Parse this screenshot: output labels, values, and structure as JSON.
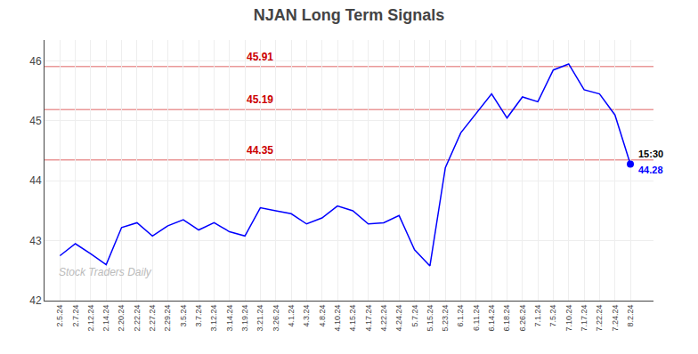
{
  "chart_data": {
    "type": "line",
    "title": "NJAN Long Term Signals",
    "categories": [
      "2.5.24",
      "2.7.24",
      "2.12.24",
      "2.14.24",
      "2.20.24",
      "2.22.24",
      "2.27.24",
      "2.29.24",
      "3.5.24",
      "3.7.24",
      "3.12.24",
      "3.14.24",
      "3.19.24",
      "3.21.24",
      "3.26.24",
      "4.1.24",
      "4.3.24",
      "4.8.24",
      "4.10.24",
      "4.15.24",
      "4.17.24",
      "4.22.24",
      "4.24.24",
      "5.7.24",
      "5.15.24",
      "5.23.24",
      "6.1.24",
      "6.11.24",
      "6.14.24",
      "6.18.24",
      "6.26.24",
      "7.1.24",
      "7.5.24",
      "7.10.24",
      "7.17.24",
      "7.22.24",
      "7.24.24",
      "8.2.24"
    ],
    "values": [
      42.75,
      42.95,
      42.78,
      42.6,
      43.22,
      43.3,
      43.08,
      43.25,
      43.35,
      43.18,
      43.3,
      43.15,
      43.08,
      43.55,
      43.5,
      43.45,
      43.28,
      43.38,
      43.58,
      43.5,
      43.28,
      43.3,
      43.42,
      42.85,
      42.58,
      44.22,
      44.8,
      45.12,
      45.45,
      45.05,
      45.4,
      45.32,
      45.85,
      45.95,
      45.52,
      45.45,
      45.1,
      44.28
    ],
    "color": "blue",
    "ylim": [
      42.0,
      46.35
    ],
    "yticks": [
      42,
      43,
      44,
      45,
      46
    ],
    "grid": true,
    "reference_lines": [
      {
        "value": 45.91,
        "label": "45.91",
        "color": "#cc0000"
      },
      {
        "value": 45.19,
        "label": "45.19",
        "color": "#cc0000"
      },
      {
        "value": 44.35,
        "label": "44.35",
        "color": "#cc0000"
      }
    ],
    "last_point_labels": {
      "time": "15:30",
      "value": "44.28"
    },
    "watermark": "Stock Traders Daily"
  }
}
